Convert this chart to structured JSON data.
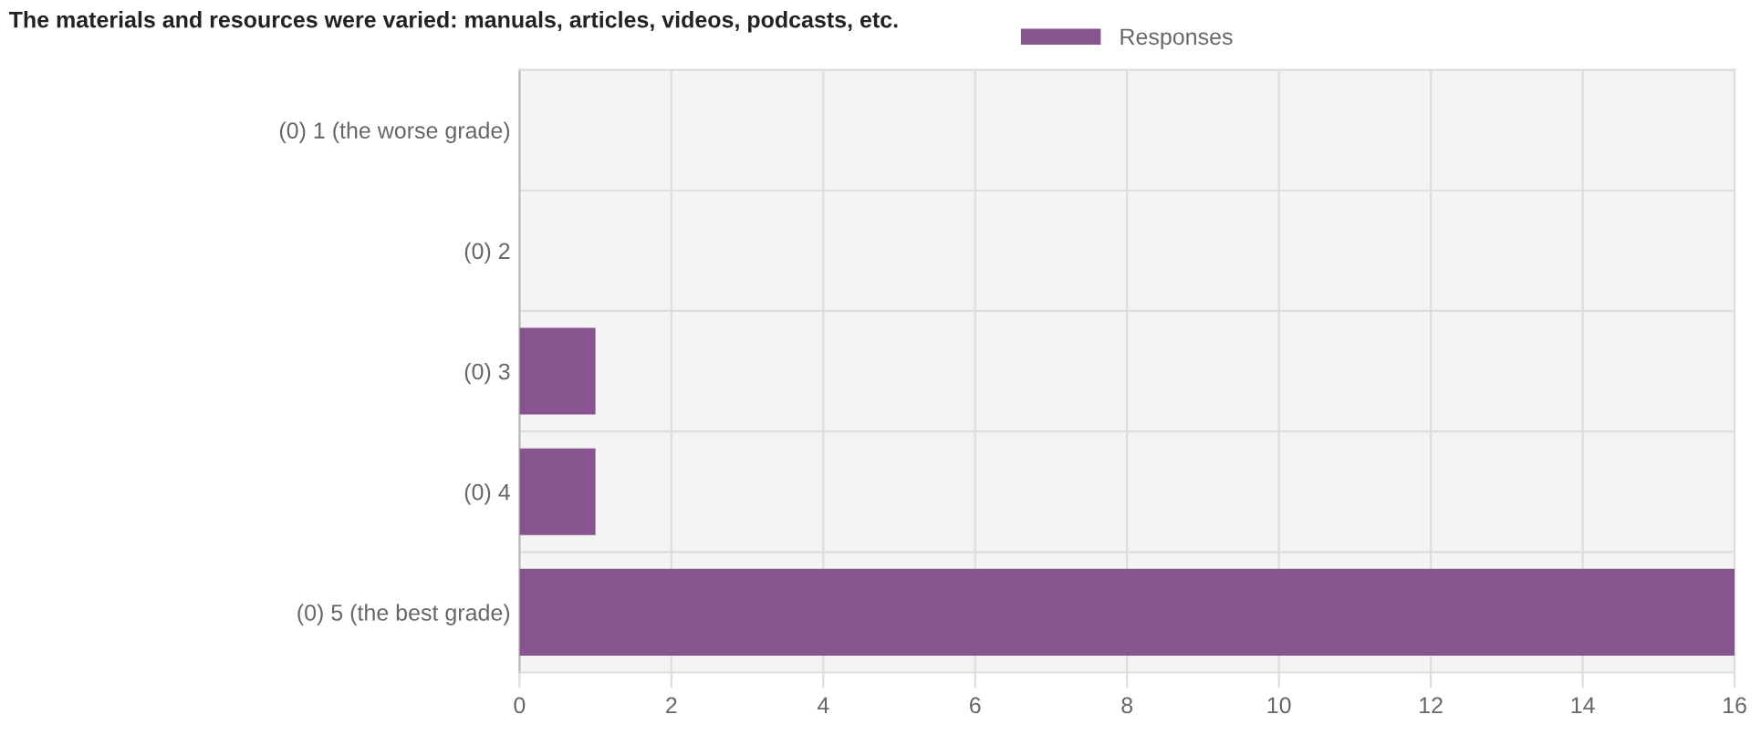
{
  "chart_data": {
    "type": "bar",
    "orientation": "horizontal",
    "title": "The materials and resources were varied: manuals, articles, videos, podcasts, etc.",
    "categories": [
      "(0) 1 (the worse grade)",
      "(0) 2",
      "(0) 3",
      "(0) 4",
      "(0) 5 (the best grade)"
    ],
    "series": [
      {
        "name": "Responses",
        "color": "#88548f",
        "values": [
          0,
          0,
          1,
          1,
          16
        ]
      }
    ],
    "xlim": [
      0,
      16
    ],
    "xticks": [
      0,
      2,
      4,
      6,
      8,
      10,
      12,
      14,
      16
    ],
    "grid": true,
    "legend": "top"
  }
}
